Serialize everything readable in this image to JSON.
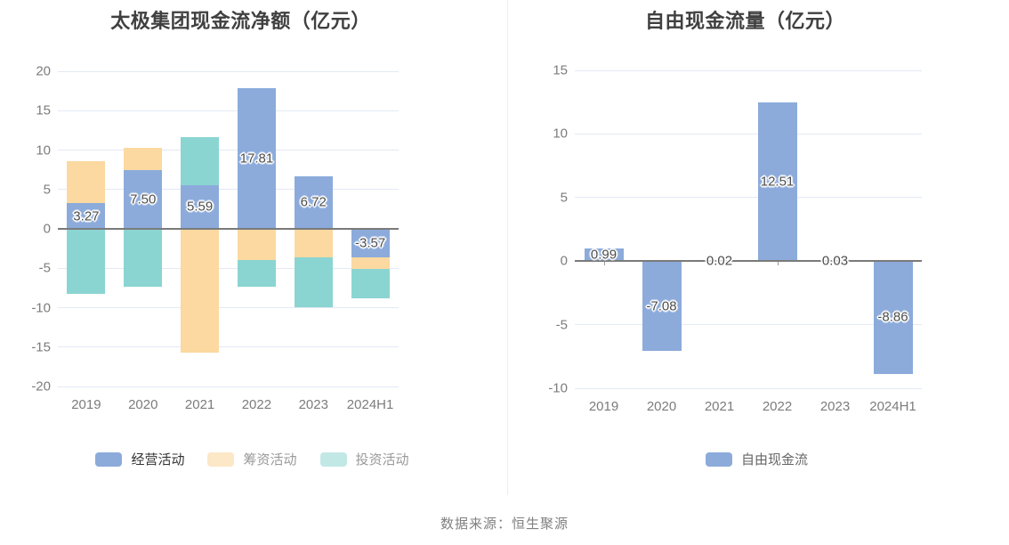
{
  "chart_data": [
    {
      "type": "bar",
      "stacked": true,
      "title": "太极集团现金流净额（亿元）",
      "categories": [
        "2019",
        "2020",
        "2021",
        "2022",
        "2023",
        "2024H1"
      ],
      "series": [
        {
          "id": "operating",
          "name": "经营活动",
          "color": "#8CABDB",
          "values": [
            3.27,
            7.5,
            5.59,
            17.81,
            6.72,
            -3.57
          ],
          "show_labels": true,
          "legend_swatch_color": "#8CABDB",
          "legend_label_color": "#333333"
        },
        {
          "id": "financing",
          "name": "筹资活动",
          "color": "#FBD9A0",
          "values": [
            5.31,
            2.83,
            -15.69,
            -3.93,
            -3.62,
            -1.49
          ],
          "show_labels": false,
          "legend_swatch_color": "#FCE7C6",
          "legend_label_color": "#999999"
        },
        {
          "id": "investing",
          "name": "投资活动",
          "color": "#8AD5D2",
          "values": [
            -8.24,
            -7.34,
            6.02,
            -3.42,
            -6.33,
            -3.81
          ],
          "show_labels": false,
          "legend_swatch_color": "#C2E8E6",
          "legend_label_color": "#999999"
        }
      ],
      "xlabel": "",
      "ylabel": "",
      "ylim": [
        -20,
        20
      ],
      "ytick_step": 5,
      "grid": true,
      "legend_position": "bottom"
    },
    {
      "type": "bar",
      "stacked": false,
      "title": "自由现金流量（亿元）",
      "categories": [
        "2019",
        "2020",
        "2021",
        "2022",
        "2023",
        "2024H1"
      ],
      "series": [
        {
          "id": "free-cash-flow",
          "name": "自由现金流",
          "color": "#8CABDB",
          "values": [
            0.99,
            -7.08,
            0.02,
            12.51,
            0.03,
            -8.86
          ],
          "show_labels": true,
          "legend_swatch_color": "#8CABDB",
          "legend_label_color": "#666666"
        }
      ],
      "xlabel": "",
      "ylabel": "",
      "ylim": [
        -10,
        15
      ],
      "ytick_step": 5,
      "grid": true,
      "legend_position": "bottom"
    }
  ],
  "footer": {
    "source_text": "数据来源：恒生聚源"
  },
  "style_colors": {
    "background": "#FFFFFF",
    "gridline": "#E3E9F4",
    "zero_line": "#7A7A7A",
    "tick_label": "#7C7C7C",
    "title": "#404040",
    "data_label": "#4D4D4D",
    "divider": "#ECECEC"
  }
}
